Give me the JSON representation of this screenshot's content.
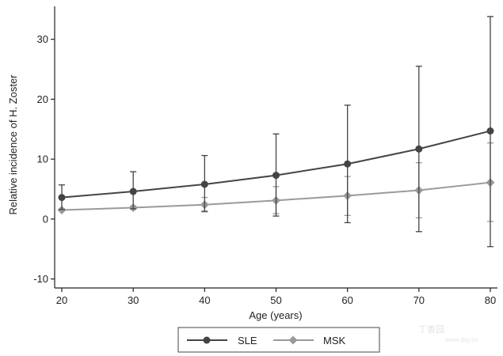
{
  "chart_data": {
    "type": "line",
    "title": "",
    "xlabel": "Age (years)",
    "ylabel": "Relative incidence of H. Zoster",
    "x": [
      20,
      30,
      40,
      50,
      60,
      70,
      80
    ],
    "xlim": [
      19,
      81
    ],
    "ylim": [
      -11.5,
      35.5
    ],
    "xticks": [
      20,
      30,
      40,
      50,
      60,
      70,
      80
    ],
    "yticks": [
      -10,
      0,
      10,
      20,
      30
    ],
    "grid": false,
    "legend_position": "bottom",
    "series": [
      {
        "name": "SLE",
        "color": "#444444",
        "marker": "circle",
        "values": [
          3.6,
          4.6,
          5.8,
          7.3,
          9.2,
          11.7,
          14.7
        ],
        "ci_low": [
          1.6,
          1.7,
          1.3,
          0.5,
          -0.6,
          -2.1,
          -4.6
        ],
        "ci_high": [
          5.7,
          7.9,
          10.6,
          14.2,
          19.0,
          25.5,
          33.8
        ]
      },
      {
        "name": "MSK",
        "color": "#9a9a9a",
        "marker": "diamond",
        "values": [
          1.5,
          1.9,
          2.4,
          3.1,
          3.9,
          4.8,
          6.1
        ],
        "ci_low": [
          1.4,
          1.7,
          1.2,
          0.9,
          0.6,
          0.2,
          -0.4
        ],
        "ci_high": [
          1.7,
          2.2,
          3.6,
          5.4,
          7.1,
          9.4,
          12.7
        ]
      }
    ]
  },
  "watermark": {
    "text": "丁香园",
    "subtext": "www.dxy.cn"
  }
}
